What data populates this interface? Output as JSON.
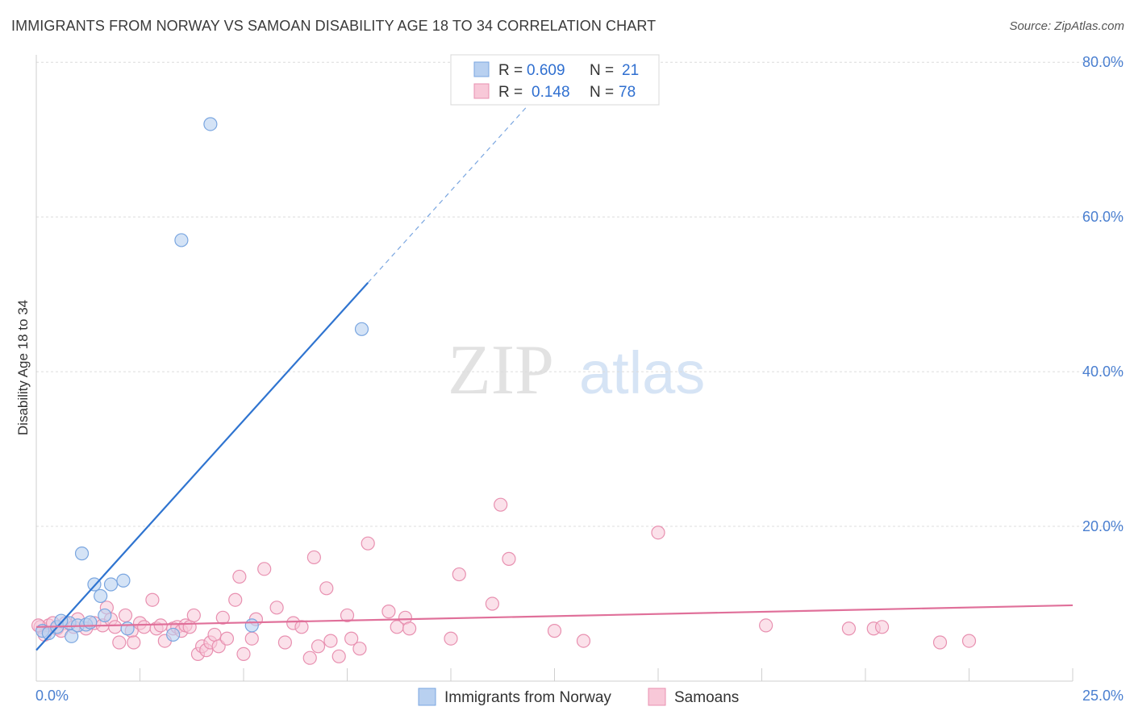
{
  "title": "IMMIGRANTS FROM NORWAY VS SAMOAN DISABILITY AGE 18 TO 34 CORRELATION CHART",
  "source": "Source: ZipAtlas.com",
  "watermark": {
    "zip": "ZIP",
    "atlas": "atlas"
  },
  "colors": {
    "norway_fill": "#b8d0f0",
    "norway_stroke": "#7aa6e0",
    "norway_line": "#2f74d0",
    "samoan_fill": "#f8c8d8",
    "samoan_stroke": "#e890b0",
    "samoan_line": "#e0709a",
    "grid": "#dcdcdc",
    "axis_label": "#4a7fd0"
  },
  "legend": {
    "rows": [
      {
        "r_label": "R =",
        "r_value": "0.609",
        "n_label": "N =",
        "n_value": "21"
      },
      {
        "r_label": "R =",
        "r_value": "0.148",
        "n_label": "N =",
        "n_value": "78"
      }
    ]
  },
  "bottom_legend": [
    "Immigrants from Norway",
    "Samoans"
  ],
  "chart_data": {
    "type": "scatter",
    "title": "IMMIGRANTS FROM NORWAY VS SAMOAN DISABILITY AGE 18 TO 34 CORRELATION CHART",
    "xlabel": "",
    "ylabel": "Disability Age 18 to 34",
    "xlim": [
      0,
      25
    ],
    "ylim": [
      0,
      82
    ],
    "x_tick_labels": [
      "0.0%",
      "25.0%"
    ],
    "y_ticks": [
      20,
      40,
      60,
      80
    ],
    "y_tick_labels": [
      "20.0%",
      "40.0%",
      "60.0%",
      "80.0%"
    ],
    "series": [
      {
        "name": "Immigrants from Norway",
        "points": [
          [
            0.15,
            6.5
          ],
          [
            0.3,
            6.2
          ],
          [
            0.5,
            7.0
          ],
          [
            0.8,
            7.5
          ],
          [
            0.85,
            5.8
          ],
          [
            1.0,
            7.2
          ],
          [
            1.1,
            16.5
          ],
          [
            1.2,
            7.3
          ],
          [
            1.4,
            12.5
          ],
          [
            1.55,
            11.0
          ],
          [
            1.65,
            8.5
          ],
          [
            1.8,
            12.5
          ],
          [
            2.1,
            13.0
          ],
          [
            2.2,
            6.8
          ],
          [
            3.3,
            6.0
          ],
          [
            3.5,
            57.0
          ],
          [
            4.2,
            72.0
          ],
          [
            5.2,
            7.2
          ],
          [
            7.85,
            45.5
          ],
          [
            0.6,
            7.8
          ],
          [
            1.3,
            7.6
          ]
        ],
        "trend": {
          "x0": 0,
          "y0": 4.0,
          "x1": 8.0,
          "y1": 51.5,
          "dash_to_x": 12.0
        }
      },
      {
        "name": "Samoans",
        "points": [
          [
            0.1,
            7.0
          ],
          [
            0.3,
            7.2
          ],
          [
            0.5,
            6.8
          ],
          [
            0.7,
            7.5
          ],
          [
            0.9,
            7.0
          ],
          [
            1.0,
            8.0
          ],
          [
            1.2,
            6.8
          ],
          [
            1.4,
            7.5
          ],
          [
            1.6,
            7.2
          ],
          [
            1.7,
            9.5
          ],
          [
            1.8,
            8.0
          ],
          [
            1.9,
            7.0
          ],
          [
            2.0,
            5.0
          ],
          [
            2.15,
            8.5
          ],
          [
            2.3,
            6.5
          ],
          [
            2.35,
            5.0
          ],
          [
            2.5,
            7.5
          ],
          [
            2.6,
            7.0
          ],
          [
            2.8,
            10.5
          ],
          [
            2.9,
            6.8
          ],
          [
            3.0,
            7.2
          ],
          [
            3.1,
            5.2
          ],
          [
            3.3,
            6.8
          ],
          [
            3.4,
            7.0
          ],
          [
            3.5,
            6.5
          ],
          [
            3.6,
            7.2
          ],
          [
            3.7,
            7.0
          ],
          [
            3.8,
            8.5
          ],
          [
            3.9,
            3.5
          ],
          [
            4.0,
            4.5
          ],
          [
            4.1,
            4.0
          ],
          [
            4.2,
            5.0
          ],
          [
            4.3,
            6.0
          ],
          [
            4.4,
            4.5
          ],
          [
            4.5,
            8.2
          ],
          [
            4.6,
            5.5
          ],
          [
            4.8,
            10.5
          ],
          [
            4.9,
            13.5
          ],
          [
            5.0,
            3.5
          ],
          [
            5.2,
            5.5
          ],
          [
            5.3,
            8.0
          ],
          [
            5.5,
            14.5
          ],
          [
            5.8,
            9.5
          ],
          [
            6.0,
            5.0
          ],
          [
            6.2,
            7.5
          ],
          [
            6.4,
            7.0
          ],
          [
            6.6,
            3.0
          ],
          [
            6.7,
            16.0
          ],
          [
            6.8,
            4.5
          ],
          [
            7.0,
            12.0
          ],
          [
            7.1,
            5.2
          ],
          [
            7.3,
            3.2
          ],
          [
            7.5,
            8.5
          ],
          [
            7.6,
            5.5
          ],
          [
            7.8,
            4.2
          ],
          [
            8.0,
            17.8
          ],
          [
            8.5,
            9.0
          ],
          [
            8.7,
            7.0
          ],
          [
            8.9,
            8.2
          ],
          [
            9.0,
            6.8
          ],
          [
            10.0,
            5.5
          ],
          [
            10.2,
            13.8
          ],
          [
            11.0,
            10.0
          ],
          [
            11.2,
            22.8
          ],
          [
            11.4,
            15.8
          ],
          [
            12.5,
            6.5
          ],
          [
            13.2,
            5.2
          ],
          [
            15.0,
            19.2
          ],
          [
            17.6,
            7.2
          ],
          [
            19.6,
            6.8
          ],
          [
            20.2,
            6.8
          ],
          [
            20.4,
            7.0
          ],
          [
            21.8,
            5.0
          ],
          [
            22.5,
            5.2
          ],
          [
            0.2,
            6.0
          ],
          [
            0.4,
            7.5
          ],
          [
            0.6,
            6.5
          ],
          [
            0.05,
            7.2
          ]
        ],
        "trend": {
          "x0": 0,
          "y0": 7.0,
          "x1": 25,
          "y1": 9.8
        }
      }
    ]
  }
}
